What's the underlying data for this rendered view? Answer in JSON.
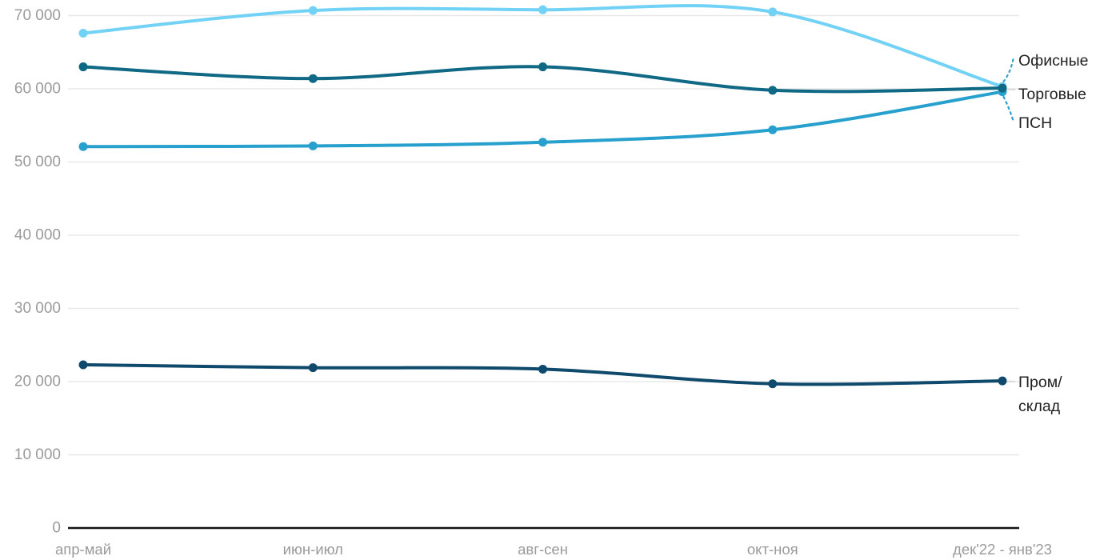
{
  "page": {
    "background": "#ffffff"
  },
  "chart_data": {
    "type": "line",
    "title": "",
    "categories": [
      "апр-май",
      "июн-июл",
      "авг-сен",
      "окт-ноя",
      "дек'22 - янв'23"
    ],
    "series": [
      {
        "name": "Офисные",
        "color": "#72d2f5",
        "values": [
          67600,
          70700,
          70800,
          70500,
          60300
        ]
      },
      {
        "name": "Торговые",
        "color": "#0f6884",
        "values": [
          63000,
          61400,
          63000,
          59800,
          60100
        ]
      },
      {
        "name": "ПСН",
        "color": "#28a0ce",
        "values": [
          52100,
          52200,
          52700,
          54400,
          59600
        ]
      },
      {
        "name": "Пром/склад",
        "color": "#0f4a6d",
        "values": [
          22300,
          21900,
          21700,
          19700,
          20100
        ]
      }
    ],
    "ylim": [
      0,
      70000
    ],
    "yticks": [
      {
        "value": 0,
        "label": "0"
      },
      {
        "value": 10000,
        "label": "10 000"
      },
      {
        "value": 20000,
        "label": "20 000"
      },
      {
        "value": 30000,
        "label": "30 000"
      },
      {
        "value": 40000,
        "label": "40 000"
      },
      {
        "value": 50000,
        "label": "50 000"
      },
      {
        "value": 60000,
        "label": "60 000"
      },
      {
        "value": 70000,
        "label": "70 000"
      }
    ],
    "grid": true,
    "legend_position": "right-end-of-line-labels",
    "end_labels": [
      {
        "series": "Офисные",
        "lines": [
          "Офисные"
        ],
        "connector": "dashed"
      },
      {
        "series": "Торговые",
        "lines": [
          "Торговые"
        ],
        "connector": "solid-gray"
      },
      {
        "series": "ПСН",
        "lines": [
          "ПСН"
        ],
        "connector": "dashed"
      },
      {
        "series": "Пром/склад",
        "lines": [
          "Пром/",
          "склад"
        ],
        "connector": "solid-gray"
      }
    ],
    "colors": {
      "grid_line": "#e8e8e8",
      "axis_line": "#141414",
      "tick_text": "#9a9a9a",
      "end_label_text": "#212121",
      "connector_gray": "#d9d9d9",
      "leader_dashed_up": "#3aa0c9",
      "leader_dashed_down": "#2a9fce"
    }
  }
}
